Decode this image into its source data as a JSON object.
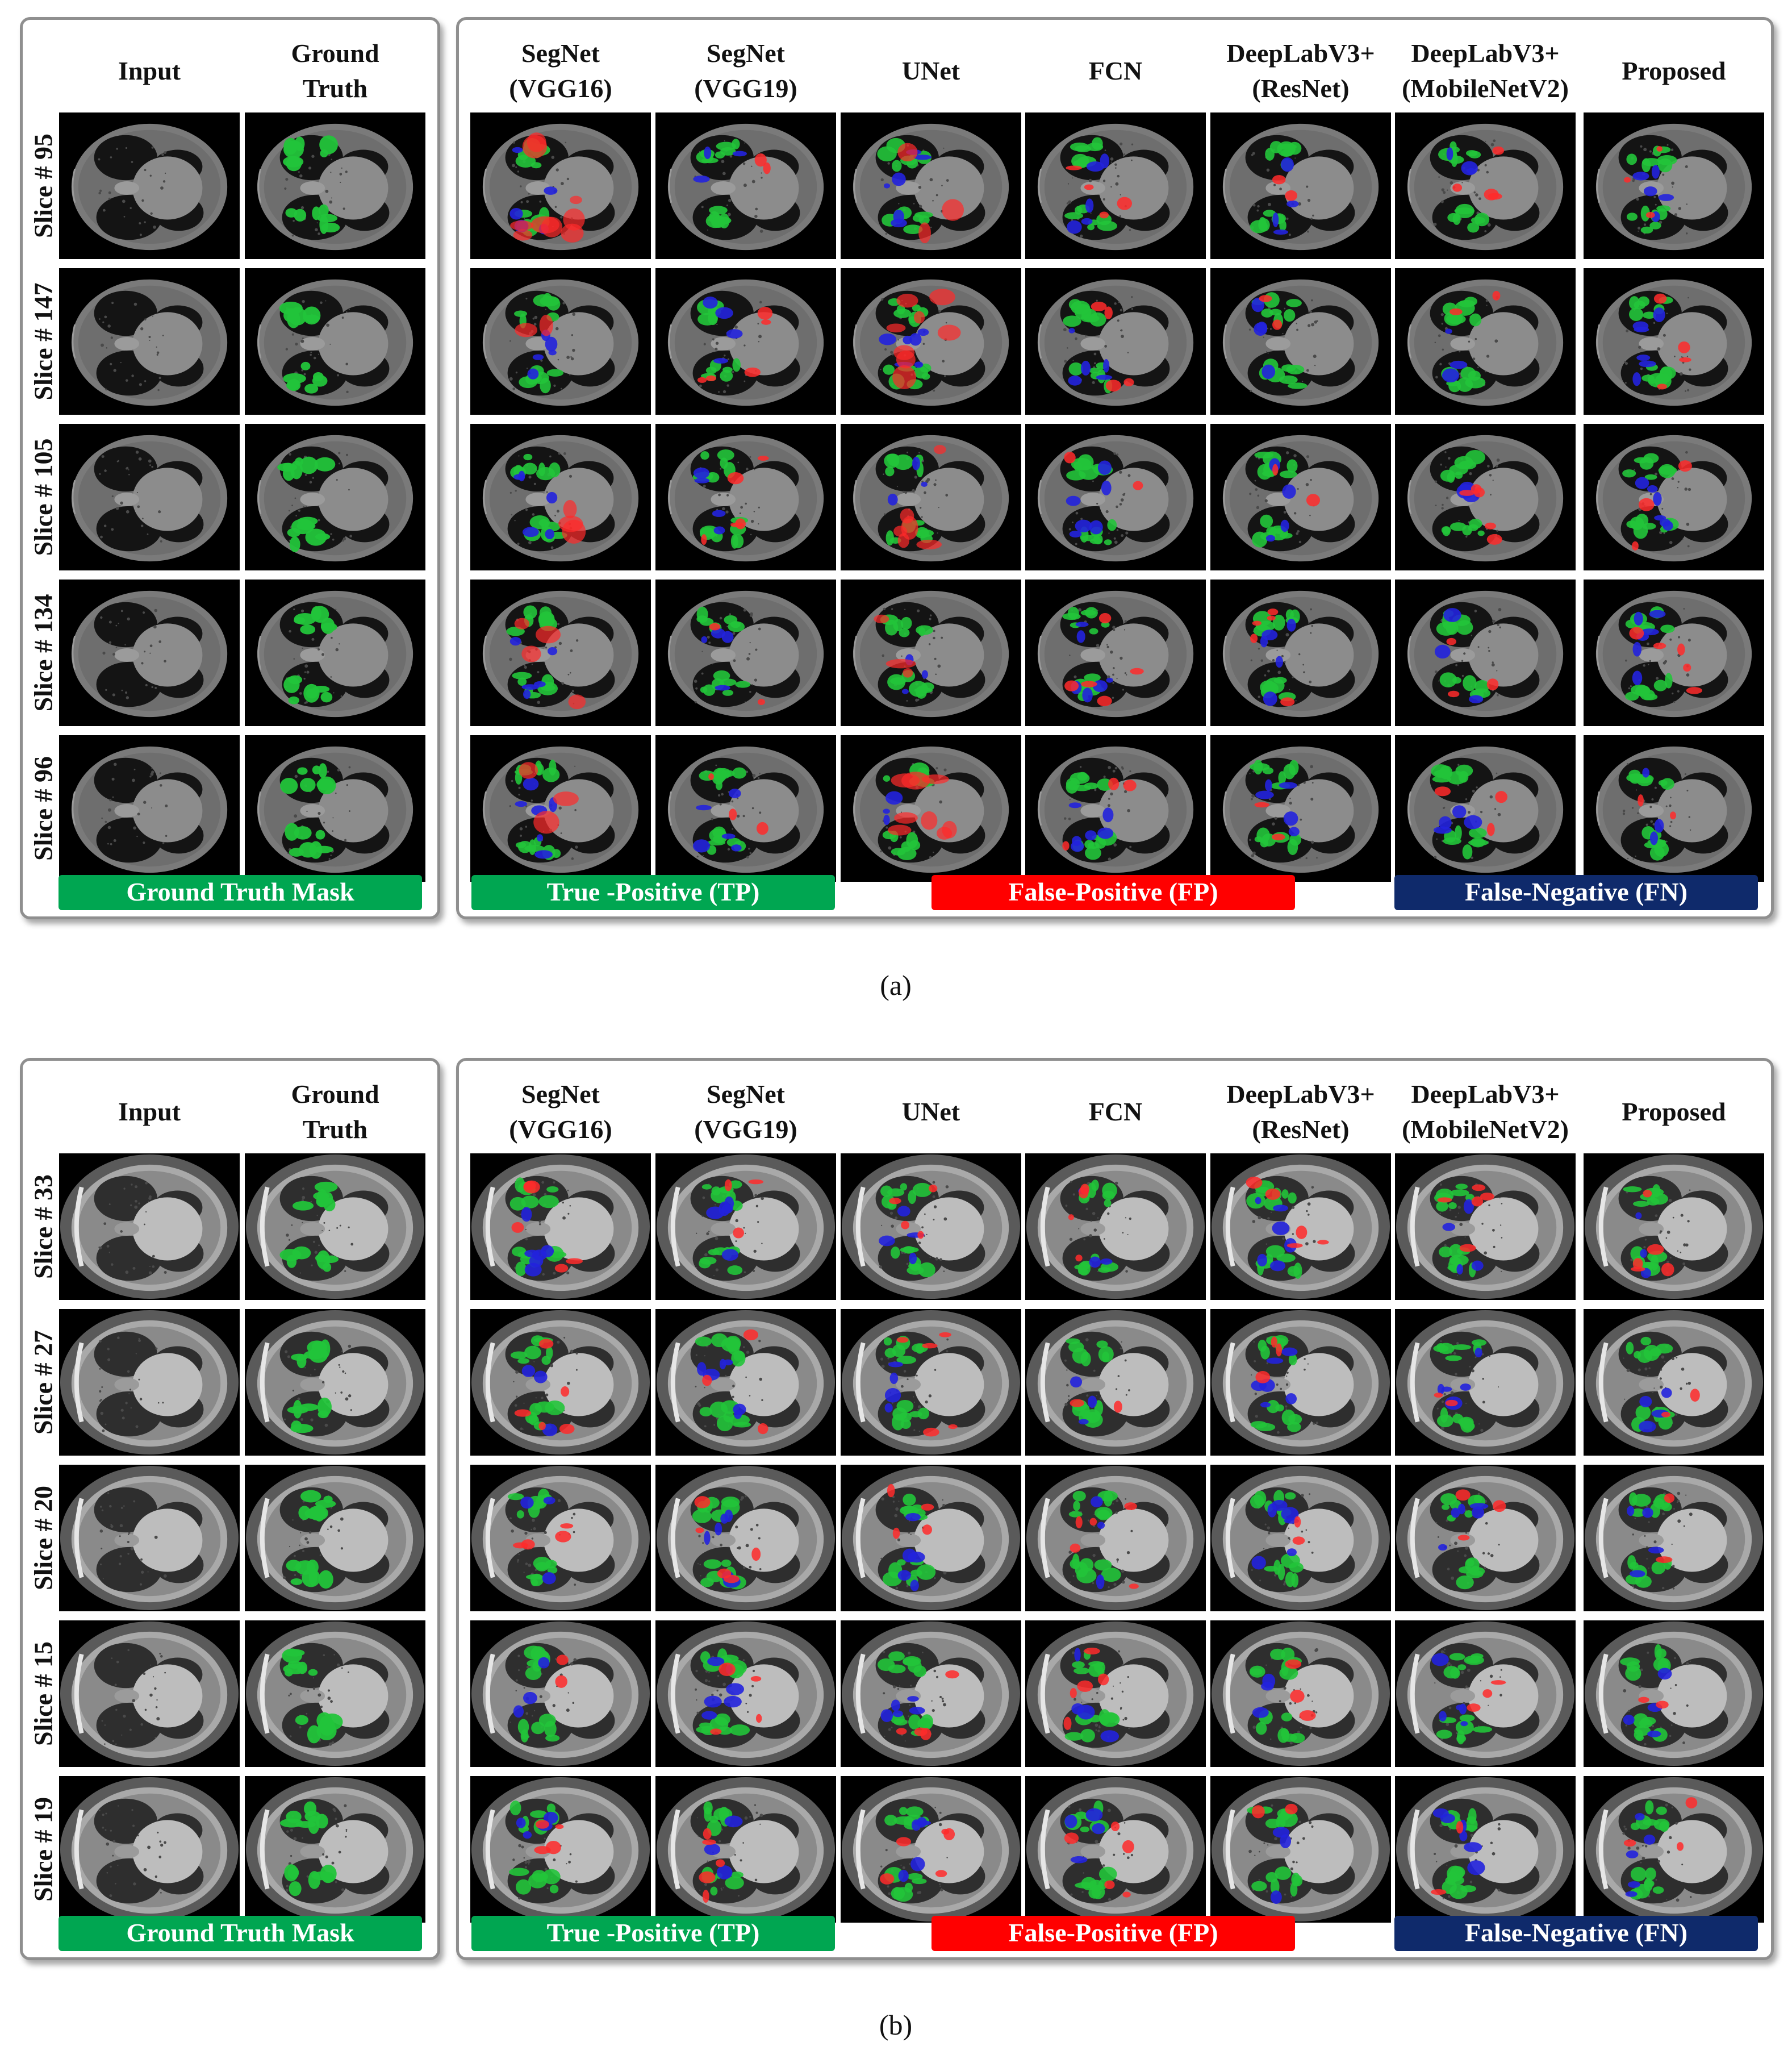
{
  "panels": [
    {
      "caption": "(a)",
      "columns_left": [
        "Input",
        "Ground\nTruth"
      ],
      "columns_right": [
        "SegNet\n(VGG16)",
        "SegNet\n(VGG19)",
        "UNet",
        "FCN",
        "DeepLabV3+\n(ResNet)",
        "DeepLabV3+\n(MobileNetV2)",
        "Proposed"
      ],
      "rows": [
        "Slice # 95",
        "Slice # 147",
        "Slice # 105",
        "Slice # 134",
        "Slice # 96"
      ],
      "legend": {
        "mask": "Ground Truth Mask",
        "tp": "True -Positive (TP)",
        "fp": "False-Positive (FP)",
        "fn": "False-Negative (FN)"
      }
    },
    {
      "caption": "(b)",
      "columns_left": [
        "Input",
        "Ground\nTruth"
      ],
      "columns_right": [
        "SegNet\n(VGG16)",
        "SegNet\n(VGG19)",
        "UNet",
        "FCN",
        "DeepLabV3+\n(ResNet)",
        "DeepLabV3+\n(MobileNetV2)",
        "Proposed"
      ],
      "rows": [
        "Slice # 33",
        "Slice # 27",
        "Slice # 20",
        "Slice # 15",
        "Slice # 19"
      ],
      "legend": {
        "mask": "Ground Truth Mask",
        "tp": "True -Positive (TP)",
        "fp": "False-Positive (FP)",
        "fn": "False-Negative (FN)"
      }
    }
  ],
  "colors": {
    "mask": "#00a651",
    "tp": "#00a651",
    "fp": "#ff0000",
    "fn": "#0f2a6b",
    "overlay_green": "#22c43a",
    "overlay_red": "#ff2a2a",
    "overlay_blue": "#2222dd"
  }
}
